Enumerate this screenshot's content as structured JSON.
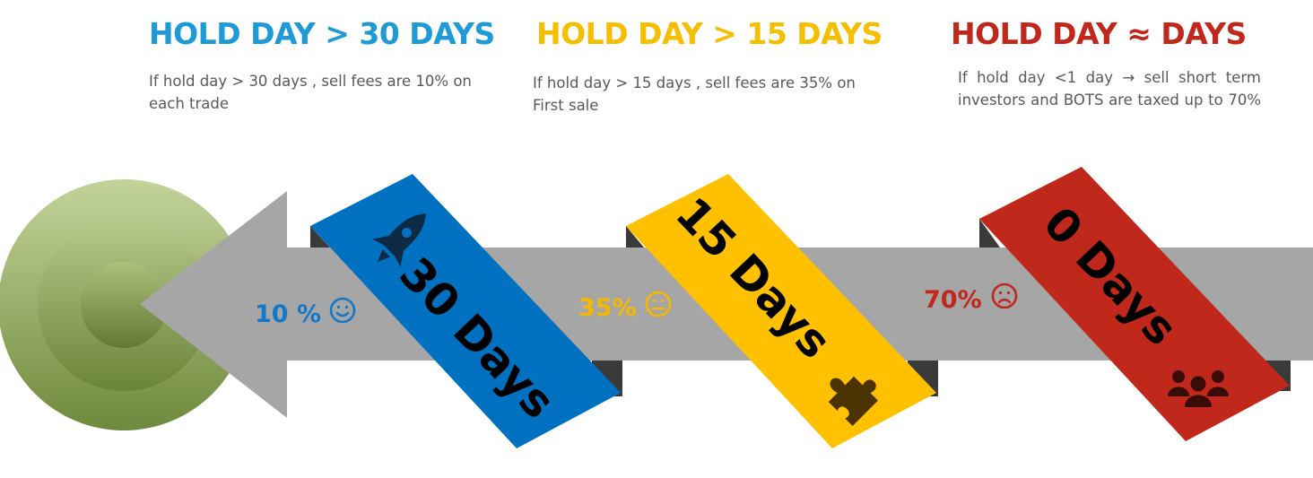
{
  "tiers": [
    {
      "heading": "HOLD DAY > 30 DAYS",
      "description": "If hold day > 30 days , sell fees are 10% on each trade",
      "fee": "10 %",
      "band_label": "30 Days",
      "band_color": "#0070c0",
      "heading_color": "#1e9ad6",
      "fee_color": "#1577c8",
      "mood": "happy-face-icon",
      "icon": "rocket-icon"
    },
    {
      "heading": "HOLD DAY > 15 DAYS",
      "description": "If hold day > 15 days , sell fees are 35% on First sale",
      "fee": "35%",
      "band_label": "15 Days",
      "band_color": "#ffc000",
      "heading_color": "#f6be00",
      "fee_color": "#f5b800",
      "mood": "neutral-face-icon",
      "icon": "puzzle-piece-icon"
    },
    {
      "heading": "HOLD DAY ≈ DAYS",
      "description": "If hold day <1 day → sell short term investors and BOTS are taxed up to 70%",
      "fee": "70%",
      "band_label": "0 Days",
      "band_color": "#c0281c",
      "heading_color": "#c0281c",
      "fee_color": "#c0281c",
      "mood": "sad-face-icon",
      "icon": "group-icon"
    }
  ],
  "colors": {
    "arrow": "#a6a6a6",
    "arrow_shadow": "#3a3a3a",
    "target_light": "#c4d49a",
    "target_dark": "#6f8a3c"
  }
}
